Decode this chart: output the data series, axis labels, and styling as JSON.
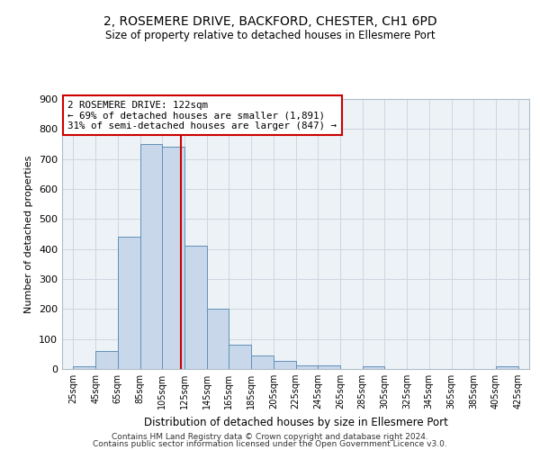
{
  "title": "2, ROSEMERE DRIVE, BACKFORD, CHESTER, CH1 6PD",
  "subtitle": "Size of property relative to detached houses in Ellesmere Port",
  "xlabel": "Distribution of detached houses by size in Ellesmere Port",
  "ylabel": "Number of detached properties",
  "bar_color": "#c8d8ea",
  "bar_edge_color": "#6090b8",
  "grid_color": "#ccd6e0",
  "bg_color": "#edf2f7",
  "annotation_line_color": "#cc0000",
  "annotation_box_color": "#cc0000",
  "property_size": 122,
  "annotation_text_line1": "2 ROSEMERE DRIVE: 122sqm",
  "annotation_text_line2": "← 69% of detached houses are smaller (1,891)",
  "annotation_text_line3": "31% of semi-detached houses are larger (847) →",
  "bins": [
    25,
    45,
    65,
    85,
    105,
    125,
    145,
    165,
    185,
    205,
    225,
    245,
    265,
    285,
    305,
    325,
    345,
    365,
    385,
    405,
    425
  ],
  "counts": [
    10,
    60,
    440,
    750,
    740,
    410,
    200,
    82,
    45,
    28,
    12,
    12,
    0,
    8,
    0,
    0,
    0,
    0,
    0,
    8
  ],
  "ylim": [
    0,
    900
  ],
  "yticks": [
    0,
    100,
    200,
    300,
    400,
    500,
    600,
    700,
    800,
    900
  ],
  "footer_line1": "Contains HM Land Registry data © Crown copyright and database right 2024.",
  "footer_line2": "Contains public sector information licensed under the Open Government Licence v3.0."
}
